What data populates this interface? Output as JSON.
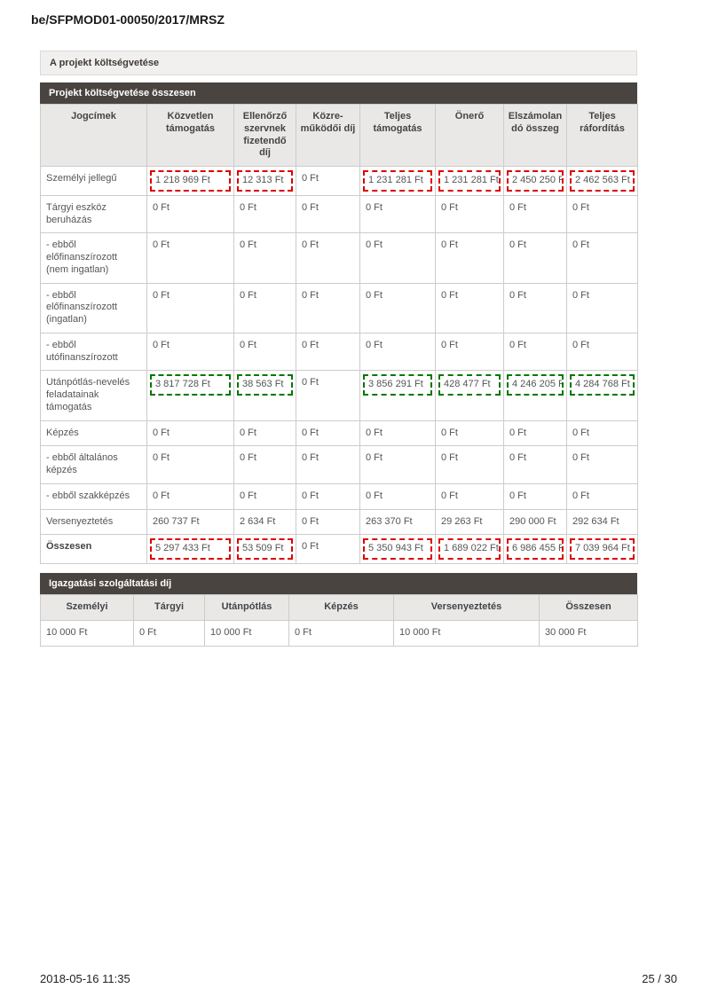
{
  "page": {
    "doc_number": "be/SFPMOD01-00050/2017/MRSZ",
    "section_title": "A projekt költségvetése",
    "footer": {
      "datetime": "2018-05-16 11:35",
      "page_indicator": "25 / 30"
    }
  },
  "colors": {
    "highlight_red": "#dd0000",
    "highlight_green": "#007700",
    "bar_dark_bg": "#4a4440",
    "bar_light_bg": "#f1f0ee",
    "table_header_bg": "#e9e8e6"
  },
  "budget_table": {
    "title": "Projekt költségvetése összesen",
    "columns": [
      "Jogcímek",
      "Közvetlen támogatás",
      "Ellenőrző szervnek fizetendő díj",
      "Közre-működői díj",
      "Teljes támogatás",
      "Önerő",
      "Elszámolandó összeg",
      "Teljes ráfordítás"
    ],
    "rows": [
      {
        "label": "Személyi jellegű",
        "bold": false,
        "box": "red",
        "values": [
          "1 218 969 Ft",
          "12 313 Ft",
          "0 Ft",
          "1 231 281 Ft",
          "1 231 281 Ft",
          "2 450 250 Ft",
          "2 462 563 Ft"
        ]
      },
      {
        "label": "Tárgyi eszköz beruházás",
        "bold": false,
        "box": null,
        "values": [
          "0 Ft",
          "0 Ft",
          "0 Ft",
          "0 Ft",
          "0 Ft",
          "0 Ft",
          "0 Ft"
        ]
      },
      {
        "label": "- ebből előfinanszírozott (nem ingatlan)",
        "bold": false,
        "box": null,
        "values": [
          "0 Ft",
          "0 Ft",
          "0 Ft",
          "0 Ft",
          "0 Ft",
          "0 Ft",
          "0 Ft"
        ]
      },
      {
        "label": "- ebből előfinanszírozott (ingatlan)",
        "bold": false,
        "box": null,
        "values": [
          "0 Ft",
          "0 Ft",
          "0 Ft",
          "0 Ft",
          "0 Ft",
          "0 Ft",
          "0 Ft"
        ]
      },
      {
        "label": "- ebből utófinanszírozott",
        "bold": false,
        "box": null,
        "values": [
          "0 Ft",
          "0 Ft",
          "0 Ft",
          "0 Ft",
          "0 Ft",
          "0 Ft",
          "0 Ft"
        ]
      },
      {
        "label": "Utánpótlás-nevelés feladatainak támogatás",
        "bold": false,
        "box": "green",
        "values": [
          "3 817 728 Ft",
          "38 563 Ft",
          "0 Ft",
          "3 856 291 Ft",
          "428 477 Ft",
          "4 246 205 Ft",
          "4 284 768 Ft"
        ]
      },
      {
        "label": "Képzés",
        "bold": false,
        "box": null,
        "values": [
          "0 Ft",
          "0 Ft",
          "0 Ft",
          "0 Ft",
          "0 Ft",
          "0 Ft",
          "0 Ft"
        ]
      },
      {
        "label": "- ebből általános képzés",
        "bold": false,
        "box": null,
        "values": [
          "0 Ft",
          "0 Ft",
          "0 Ft",
          "0 Ft",
          "0 Ft",
          "0 Ft",
          "0 Ft"
        ]
      },
      {
        "label": "- ebből szakképzés",
        "bold": false,
        "box": null,
        "values": [
          "0 Ft",
          "0 Ft",
          "0 Ft",
          "0 Ft",
          "0 Ft",
          "0 Ft",
          "0 Ft"
        ]
      },
      {
        "label": "Versenyeztetés",
        "bold": false,
        "box": null,
        "values": [
          "260 737 Ft",
          "2 634 Ft",
          "0 Ft",
          "263 370 Ft",
          "29 263 Ft",
          "290 000 Ft",
          "292 634 Ft"
        ]
      },
      {
        "label": "Összesen",
        "bold": true,
        "box": "red",
        "values": [
          "5 297 433 Ft",
          "53 509 Ft",
          "0 Ft",
          "5 350 943 Ft",
          "1 689 022 Ft",
          "6 986 455 Ft",
          "7 039 964 Ft"
        ]
      }
    ]
  },
  "admin_fee_table": {
    "title": "Igazgatási szolgáltatási díj",
    "columns": [
      "Személyi",
      "Tárgyi",
      "Utánpótlás",
      "Képzés",
      "Versenyeztetés",
      "Összesen"
    ],
    "values": [
      "10 000 Ft",
      "0 Ft",
      "10 000 Ft",
      "0 Ft",
      "10 000 Ft",
      "30 000 Ft"
    ]
  }
}
